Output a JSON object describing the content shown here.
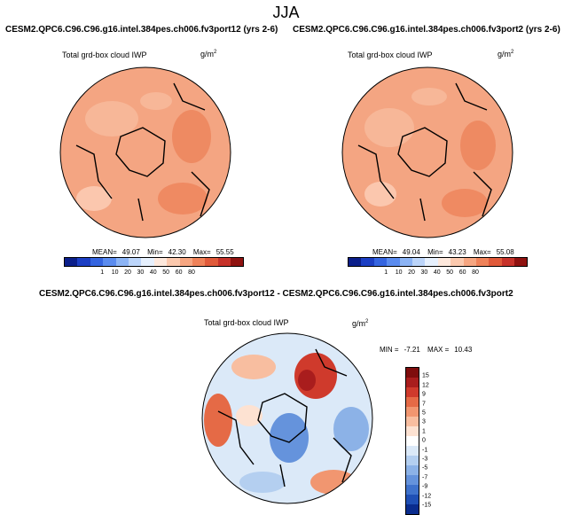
{
  "figure": {
    "season": "JJA"
  },
  "panels": [
    {
      "title": "CESM2.QPC6.C96.C96.g16.intel.384pes.ch006.fv3port12 (yrs 2-6)",
      "variable": "Total grd-box cloud IWP",
      "units_base": "g/m",
      "units_exp": "2",
      "mean_label": "MEAN=",
      "mean": "49.07",
      "min_label": "Min=",
      "min": "42.30",
      "max_label": "Max=",
      "max": "55.55",
      "fill_color": "#f4a582"
    },
    {
      "title": "CESM2.QPC6.C96.C96.g16.intel.384pes.ch006.fv3port2 (yrs 2-6)",
      "variable": "Total grd-box cloud IWP",
      "units_base": "g/m",
      "units_exp": "2",
      "mean_label": "MEAN=",
      "mean": "49.04",
      "min_label": "Min=",
      "min": "43.23",
      "max_label": "Max=",
      "max": "55.08",
      "fill_color": "#f4a582"
    }
  ],
  "abs_colorbar": {
    "colors": [
      "#0b1f8a",
      "#1c3fc4",
      "#3565e0",
      "#5b8cef",
      "#8cb4f5",
      "#bcd5fa",
      "#e6f0fd",
      "#fde8dc",
      "#fbc9ae",
      "#f6a681",
      "#ef8259",
      "#e05a3a",
      "#c7322a",
      "#8f1210"
    ],
    "labels": [
      "1",
      "10",
      "20",
      "30",
      "40",
      "50",
      "60",
      "80"
    ]
  },
  "diff_panel": {
    "title": "CESM2.QPC6.C96.C96.g16.intel.384pes.ch006.fv3port12 - CESM2.QPC6.C96.C96.g16.intel.384pes.ch006.fv3port2",
    "variable": "Total grd-box cloud IWP",
    "units_base": "g/m",
    "units_exp": "2",
    "min_label": "MIN =",
    "min": "-7.21",
    "max_label": "MAX =",
    "max": "10.43",
    "colors": [
      "#7f0d0d",
      "#a91d1d",
      "#cf3a2c",
      "#e56a46",
      "#f19670",
      "#f8bea0",
      "#fde2d2",
      "#ffffff",
      "#dbe9f8",
      "#b4cff0",
      "#8cb2e7",
      "#6593dc",
      "#3f72cc",
      "#1f4fb5",
      "#0a2c8e"
    ],
    "labels": [
      "15",
      "12",
      "9",
      "7",
      "5",
      "3",
      "1",
      "0",
      "-1",
      "-3",
      "-5",
      "-7",
      "-9",
      "-12",
      "-15"
    ]
  }
}
